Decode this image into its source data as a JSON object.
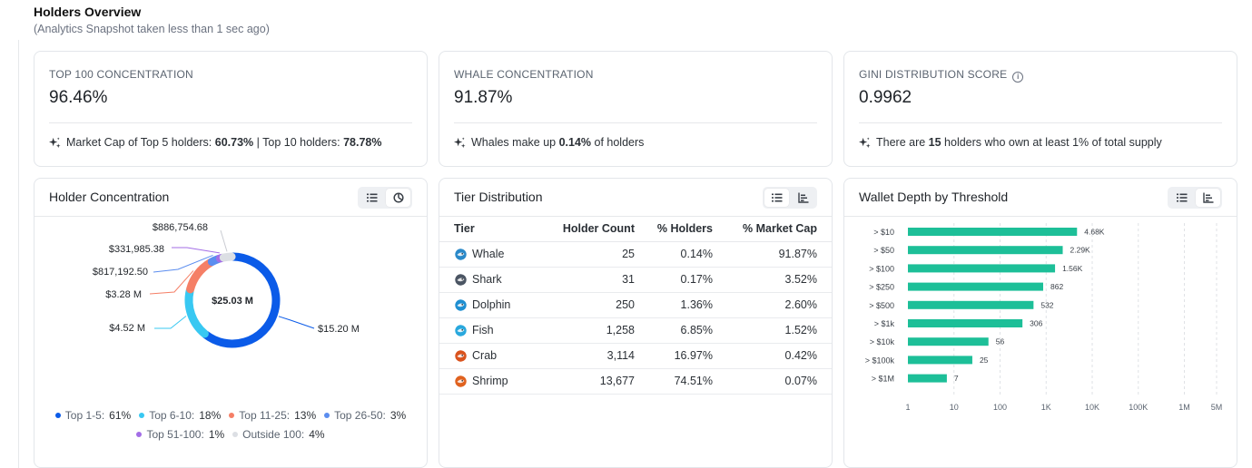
{
  "page": {
    "title": "Holders Overview",
    "subtitle": "(Analytics Snapshot taken less than 1 sec ago)"
  },
  "stats": [
    {
      "label": "TOP 100 CONCENTRATION",
      "value": "96.46%",
      "note_parts": [
        "Market Cap of Top 5 holders: ",
        "60.73%",
        " | Top 10 holders: ",
        "78.78%"
      ]
    },
    {
      "label": "WHALE CONCENTRATION",
      "value": "91.87%",
      "note_parts": [
        "Whales make up ",
        "0.14%",
        " of holders"
      ]
    },
    {
      "label": "GINI DISTRIBUTION SCORE",
      "value": "0.9962",
      "note_parts": [
        "There are ",
        "15",
        " holders who own at least 1% of total supply"
      ]
    }
  ],
  "holder_concentration": {
    "title": "Holder Concentration",
    "center_label": "$25.03 M",
    "legend": [
      {
        "name": "Top 1-5:",
        "pct": "61%"
      },
      {
        "name": "Top 6-10:",
        "pct": "18%"
      },
      {
        "name": "Top 11-25:",
        "pct": "13%"
      },
      {
        "name": "Top 26-50:",
        "pct": "3%"
      },
      {
        "name": "Top 51-100:",
        "pct": "1%"
      },
      {
        "name": "Outside 100:",
        "pct": "4%"
      }
    ]
  },
  "tier_distribution": {
    "title": "Tier Distribution",
    "columns": [
      "Tier",
      "Holder Count",
      "% Holders",
      "% Market Cap"
    ],
    "rows": [
      {
        "tier": "Whale",
        "icon": "whale-icon",
        "count": "25",
        "holders": "0.14%",
        "mcap": "91.87%"
      },
      {
        "tier": "Shark",
        "icon": "shark-icon",
        "count": "31",
        "holders": "0.17%",
        "mcap": "3.52%"
      },
      {
        "tier": "Dolphin",
        "icon": "dolphin-icon",
        "count": "250",
        "holders": "1.36%",
        "mcap": "2.60%"
      },
      {
        "tier": "Fish",
        "icon": "fish-icon",
        "count": "1,258",
        "holders": "6.85%",
        "mcap": "1.52%"
      },
      {
        "tier": "Crab",
        "icon": "crab-icon",
        "count": "3,114",
        "holders": "16.97%",
        "mcap": "0.42%"
      },
      {
        "tier": "Shrimp",
        "icon": "shrimp-icon",
        "count": "13,677",
        "holders": "74.51%",
        "mcap": "0.07%"
      }
    ]
  },
  "wallet_depth": {
    "title": "Wallet Depth by Threshold"
  },
  "colors": {
    "top_1_5": "#0b5be8",
    "top_6_10": "#38c8f2",
    "top_11_25": "#f57f66",
    "top_26_50": "#5b8def",
    "top_51_100": "#a36ee6",
    "outside_100": "#dcdfe4",
    "bar": "#1dbf98"
  },
  "chart_data": [
    {
      "type": "pie",
      "variant": "donut",
      "categories": [
        "Top 1-5",
        "Top 6-10",
        "Top 11-25",
        "Top 26-50",
        "Top 51-100",
        "Outside 100"
      ],
      "values": [
        15200000,
        4520000,
        3280000,
        817192.5,
        331985.38,
        886754.68
      ],
      "value_labels": [
        "$15.20 M",
        "$4.52 M",
        "$3.28 M",
        "$817,192.50",
        "$331,985.38",
        "$886,754.68"
      ],
      "percent_labels": [
        "61%",
        "18%",
        "13%",
        "3%",
        "1%",
        "4%"
      ],
      "center_label": "$25.03 M",
      "legend_position": "bottom"
    },
    {
      "type": "bar",
      "orientation": "horizontal",
      "categories": [
        "> $10",
        "> $50",
        "> $100",
        "> $250",
        "> $500",
        "> $1k",
        "> $10k",
        "> $100k",
        "> $1M"
      ],
      "values": [
        4680,
        2290,
        1560,
        862,
        532,
        306,
        56,
        25,
        7
      ],
      "value_labels": [
        "4.68K",
        "2.29K",
        "1.56K",
        "862",
        "532",
        "306",
        "56",
        "25",
        "7"
      ],
      "x_scale": "log",
      "xlim": [
        1,
        5000000
      ],
      "x_ticks": [
        1,
        10,
        100,
        1000,
        10000,
        100000,
        1000000,
        5000000
      ],
      "x_tick_labels": [
        "1",
        "10",
        "100",
        "1K",
        "10K",
        "100K",
        "1M",
        "5M"
      ],
      "grid": true
    }
  ]
}
